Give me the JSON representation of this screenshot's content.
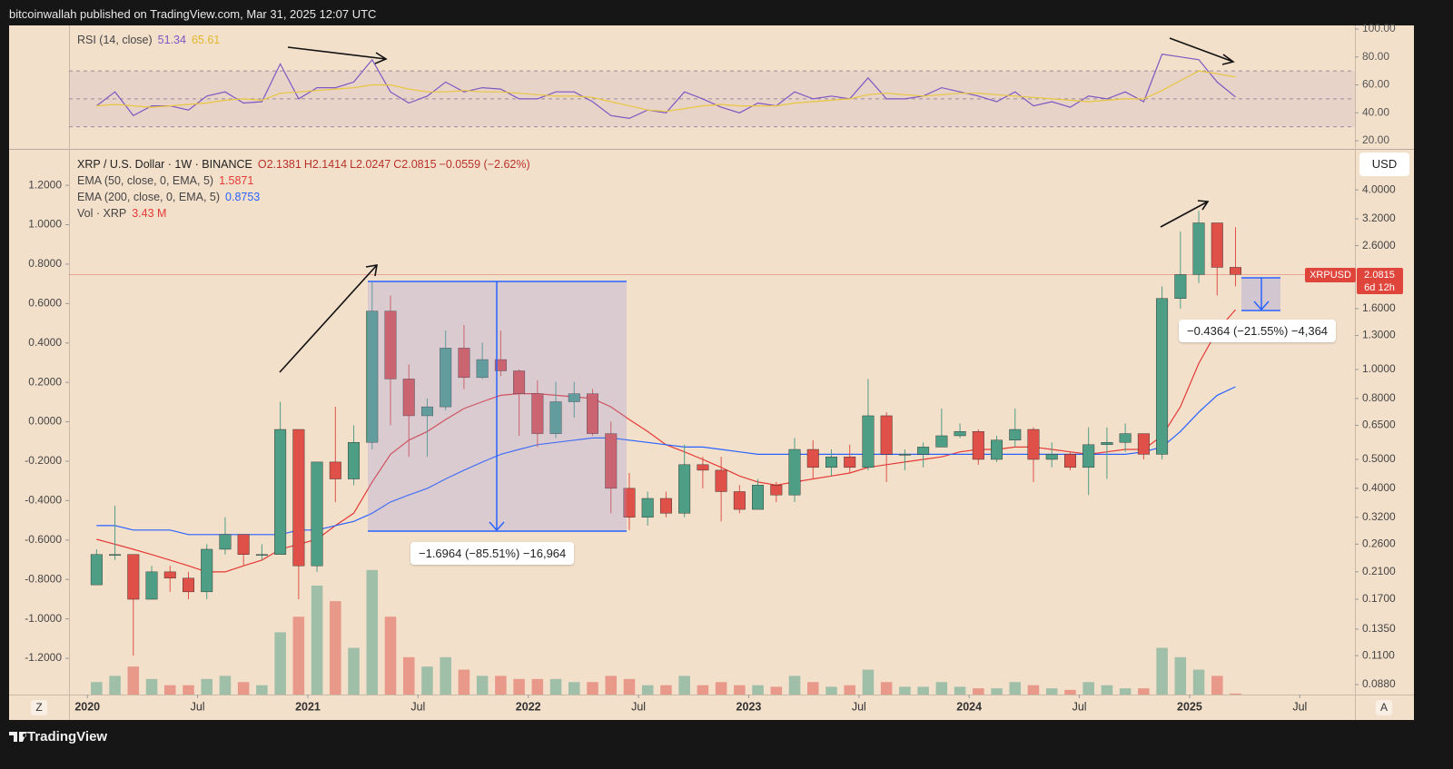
{
  "header": {
    "text": "bitcoinwallah published on TradingView.com, Mar 31, 2025 12:07 UTC"
  },
  "footer": {
    "brand": "TradingView",
    "left_button": "Z",
    "right_button": "A"
  },
  "chart_data": [
    {
      "type": "line",
      "title": "RSI (14, close)",
      "x": [
        "2020-01",
        "2020-02",
        "2020-03",
        "2020-04",
        "2020-05",
        "2020-06",
        "2020-07",
        "2020-08",
        "2020-09",
        "2020-10",
        "2020-11",
        "2020-12",
        "2021-01",
        "2021-02",
        "2021-03",
        "2021-04",
        "2021-05",
        "2021-06",
        "2021-07",
        "2021-08",
        "2021-09",
        "2021-10",
        "2021-11",
        "2021-12",
        "2022-01",
        "2022-02",
        "2022-03",
        "2022-04",
        "2022-05",
        "2022-06",
        "2022-07",
        "2022-08",
        "2022-09",
        "2022-10",
        "2022-11",
        "2022-12",
        "2023-01",
        "2023-02",
        "2023-03",
        "2023-04",
        "2023-05",
        "2023-06",
        "2023-07",
        "2023-08",
        "2023-09",
        "2023-10",
        "2023-11",
        "2023-12",
        "2024-01",
        "2024-02",
        "2024-03",
        "2024-04",
        "2024-05",
        "2024-06",
        "2024-07",
        "2024-08",
        "2024-09",
        "2024-10",
        "2024-11",
        "2024-12",
        "2025-01",
        "2025-02",
        "2025-03"
      ],
      "series": [
        {
          "color": "#7e57c2",
          "values": [
            45,
            55,
            38,
            45,
            45,
            42,
            52,
            55,
            47,
            48,
            75,
            50,
            58,
            58,
            62,
            78,
            55,
            47,
            52,
            62,
            55,
            58,
            57,
            50,
            50,
            55,
            55,
            48,
            38,
            36,
            42,
            40,
            55,
            50,
            44,
            40,
            47,
            45,
            55,
            50,
            52,
            50,
            65,
            50,
            50,
            52,
            58,
            55,
            52,
            48,
            55,
            45,
            48,
            44,
            52,
            50,
            55,
            48,
            82,
            80,
            78,
            62,
            51.34
          ]
        },
        {
          "color": "#e9c63f",
          "values": [
            45,
            46,
            45,
            44,
            45,
            46,
            47,
            49,
            50,
            49,
            54,
            55,
            56,
            57,
            58,
            60,
            60,
            57,
            55,
            55,
            56,
            55,
            55,
            54,
            53,
            52,
            52,
            51,
            48,
            45,
            42,
            41,
            43,
            45,
            46,
            45,
            45,
            45,
            47,
            48,
            49,
            50,
            53,
            54,
            53,
            52,
            53,
            54,
            54,
            53,
            52,
            51,
            50,
            49,
            48,
            49,
            50,
            50,
            56,
            63,
            70,
            68,
            65.61
          ]
        }
      ],
      "ylim": [
        14.8,
        102.6
      ],
      "yticks": [
        {
          "value": 100,
          "label": "100.00"
        },
        {
          "value": 80,
          "label": "80.00"
        },
        {
          "value": 60,
          "label": "60.00"
        },
        {
          "value": 40,
          "label": "40.00"
        },
        {
          "value": 20,
          "label": "20.00"
        }
      ],
      "band": [
        30,
        70
      ],
      "levels": [
        30,
        50,
        70
      ],
      "xlim": [
        "2019-12",
        "2025-10"
      ]
    },
    {
      "type": "candlestick",
      "title": "XRP / U.S. Dollar · 1W · BINANCE",
      "ohlc_legend": [
        "O2.1381",
        "H2.1414",
        "L2.0247",
        "C2.0815",
        "−0.0559 (−2.62%)"
      ],
      "x": [
        "2020-01",
        "2020-02",
        "2020-03",
        "2020-04",
        "2020-05",
        "2020-06",
        "2020-07",
        "2020-08",
        "2020-09",
        "2020-10",
        "2020-11",
        "2020-12",
        "2021-01",
        "2021-02",
        "2021-03",
        "2021-04",
        "2021-05",
        "2021-06",
        "2021-07",
        "2021-08",
        "2021-09",
        "2021-10",
        "2021-11",
        "2021-12",
        "2022-01",
        "2022-02",
        "2022-03",
        "2022-04",
        "2022-05",
        "2022-06",
        "2022-07",
        "2022-08",
        "2022-09",
        "2022-10",
        "2022-11",
        "2022-12",
        "2023-01",
        "2023-02",
        "2023-03",
        "2023-04",
        "2023-05",
        "2023-06",
        "2023-07",
        "2023-08",
        "2023-09",
        "2023-10",
        "2023-11",
        "2023-12",
        "2024-01",
        "2024-02",
        "2024-03",
        "2024-04",
        "2024-05",
        "2024-06",
        "2024-07",
        "2024-08",
        "2024-09",
        "2024-10",
        "2024-11",
        "2024-12",
        "2025-01",
        "2025-02",
        "2025-03"
      ],
      "open": [
        0.19,
        0.24,
        0.24,
        0.17,
        0.21,
        0.2,
        0.18,
        0.25,
        0.28,
        0.24,
        0.24,
        0.63,
        0.22,
        0.49,
        0.43,
        0.57,
        1.57,
        0.93,
        0.7,
        0.75,
        1.18,
        0.94,
        1.08,
        0.99,
        0.83,
        0.61,
        0.78,
        0.83,
        0.61,
        0.4,
        0.32,
        0.37,
        0.33,
        0.48,
        0.46,
        0.39,
        0.34,
        0.41,
        0.38,
        0.54,
        0.47,
        0.51,
        0.47,
        0.7,
        0.52,
        0.52,
        0.55,
        0.6,
        0.62,
        0.5,
        0.58,
        0.63,
        0.5,
        0.52,
        0.47,
        0.56,
        0.57,
        0.61,
        0.52,
        1.73,
        2.08,
        3.1,
        2.2
      ],
      "high": [
        0.25,
        0.35,
        0.24,
        0.22,
        0.22,
        0.21,
        0.26,
        0.32,
        0.28,
        0.26,
        0.78,
        0.63,
        0.49,
        0.75,
        0.65,
        1.96,
        1.77,
        1.04,
        0.8,
        1.35,
        1.41,
        1.23,
        1.35,
        1.0,
        0.92,
        0.91,
        0.91,
        0.86,
        0.67,
        0.45,
        0.39,
        0.39,
        0.56,
        0.51,
        0.51,
        0.41,
        0.43,
        0.42,
        0.59,
        0.58,
        0.54,
        0.56,
        0.93,
        0.72,
        0.54,
        0.57,
        0.74,
        0.66,
        0.63,
        0.6,
        0.74,
        0.64,
        0.57,
        0.53,
        0.64,
        0.64,
        0.66,
        0.61,
        1.9,
        2.9,
        3.4,
        3.1,
        3.0
      ],
      "low": [
        0.19,
        0.23,
        0.11,
        0.17,
        0.18,
        0.17,
        0.17,
        0.24,
        0.22,
        0.23,
        0.24,
        0.17,
        0.21,
        0.36,
        0.41,
        0.54,
        0.65,
        0.51,
        0.51,
        0.73,
        0.86,
        0.93,
        0.95,
        0.6,
        0.55,
        0.59,
        0.69,
        0.6,
        0.33,
        0.29,
        0.3,
        0.32,
        0.32,
        0.4,
        0.31,
        0.33,
        0.34,
        0.36,
        0.36,
        0.43,
        0.44,
        0.45,
        0.46,
        0.42,
        0.46,
        0.47,
        0.55,
        0.59,
        0.48,
        0.49,
        0.55,
        0.42,
        0.47,
        0.46,
        0.38,
        0.43,
        0.53,
        0.5,
        0.5,
        1.6,
        1.95,
        1.77,
        1.9
      ],
      "close": [
        0.24,
        0.24,
        0.17,
        0.21,
        0.2,
        0.18,
        0.25,
        0.28,
        0.24,
        0.24,
        0.63,
        0.22,
        0.49,
        0.43,
        0.57,
        1.57,
        0.93,
        0.7,
        0.75,
        1.18,
        0.94,
        1.08,
        0.99,
        0.83,
        0.61,
        0.78,
        0.83,
        0.61,
        0.4,
        0.32,
        0.37,
        0.33,
        0.48,
        0.46,
        0.39,
        0.34,
        0.41,
        0.38,
        0.54,
        0.47,
        0.51,
        0.47,
        0.7,
        0.52,
        0.52,
        0.55,
        0.6,
        0.62,
        0.5,
        0.58,
        0.63,
        0.5,
        0.52,
        0.47,
        0.56,
        0.57,
        0.61,
        0.52,
        1.73,
        2.08,
        3.1,
        2.2,
        2.0815
      ],
      "up_color": "#4e9e85",
      "down_color": "#df5148",
      "series": [
        {
          "name": "EMA (50, close, 0, EMA, 5)",
          "color": "#e53935",
          "values": [
            0.27,
            0.26,
            0.25,
            0.24,
            0.23,
            0.22,
            0.21,
            0.21,
            0.22,
            0.23,
            0.25,
            0.26,
            0.27,
            0.3,
            0.33,
            0.42,
            0.52,
            0.58,
            0.62,
            0.68,
            0.74,
            0.78,
            0.82,
            0.83,
            0.83,
            0.82,
            0.81,
            0.8,
            0.75,
            0.68,
            0.62,
            0.56,
            0.53,
            0.5,
            0.47,
            0.44,
            0.42,
            0.41,
            0.42,
            0.43,
            0.44,
            0.45,
            0.47,
            0.48,
            0.49,
            0.5,
            0.51,
            0.53,
            0.54,
            0.54,
            0.55,
            0.55,
            0.54,
            0.53,
            0.52,
            0.53,
            0.54,
            0.54,
            0.6,
            0.75,
            1.05,
            1.35,
            1.5871
          ]
        },
        {
          "name": "EMA (200, close, 0, EMA, 5)",
          "color": "#2962ff",
          "values": [
            0.3,
            0.3,
            0.29,
            0.29,
            0.29,
            0.28,
            0.28,
            0.28,
            0.28,
            0.28,
            0.28,
            0.29,
            0.29,
            0.3,
            0.31,
            0.33,
            0.36,
            0.38,
            0.4,
            0.43,
            0.46,
            0.49,
            0.52,
            0.54,
            0.56,
            0.57,
            0.58,
            0.59,
            0.59,
            0.58,
            0.57,
            0.56,
            0.55,
            0.55,
            0.54,
            0.53,
            0.52,
            0.52,
            0.52,
            0.52,
            0.52,
            0.52,
            0.52,
            0.52,
            0.52,
            0.52,
            0.52,
            0.52,
            0.52,
            0.52,
            0.52,
            0.52,
            0.52,
            0.52,
            0.52,
            0.52,
            0.52,
            0.53,
            0.55,
            0.62,
            0.72,
            0.82,
            0.8753
          ]
        }
      ],
      "volume": {
        "name": "Vol · XRP",
        "legend_value": "3.43 M",
        "values": [
          40,
          60,
          90,
          50,
          30,
          30,
          50,
          60,
          40,
          30,
          200,
          250,
          350,
          300,
          150,
          400,
          250,
          120,
          90,
          120,
          80,
          60,
          60,
          50,
          50,
          50,
          40,
          40,
          60,
          50,
          30,
          30,
          60,
          30,
          40,
          30,
          30,
          25,
          60,
          40,
          25,
          30,
          80,
          40,
          25,
          25,
          40,
          25,
          20,
          20,
          40,
          30,
          20,
          15,
          40,
          30,
          20,
          20,
          150,
          120,
          80,
          60,
          3.43
        ],
        "vlim": [
          0,
          700
        ]
      },
      "log": true,
      "ylim": [
        0.0815,
        5.26
      ],
      "yticks": [
        {
          "value": 4,
          "label": "4.0000"
        },
        {
          "value": 3.2,
          "label": "3.2000"
        },
        {
          "value": 2.6,
          "label": "2.6000"
        },
        {
          "value": 1.6,
          "label": "1.6000"
        },
        {
          "value": 1.3,
          "label": "1.3000"
        },
        {
          "value": 1,
          "label": "1.0000"
        },
        {
          "value": 0.8,
          "label": "0.8000"
        },
        {
          "value": 0.65,
          "label": "0.6500"
        },
        {
          "value": 0.5,
          "label": "0.5000"
        },
        {
          "value": 0.4,
          "label": "0.4000"
        },
        {
          "value": 0.32,
          "label": "0.3200"
        },
        {
          "value": 0.26,
          "label": "0.2600"
        },
        {
          "value": 0.21,
          "label": "0.2100"
        },
        {
          "value": 0.17,
          "label": "0.1700"
        },
        {
          "value": 0.135,
          "label": "0.1350"
        },
        {
          "value": 0.11,
          "label": "0.1100"
        },
        {
          "value": 0.088,
          "label": "0.0880"
        }
      ],
      "y2lim": [
        -1.384,
        1.357
      ],
      "y2ticks": [
        {
          "value": 1.2,
          "label": "1.2000"
        },
        {
          "value": 1,
          "label": "1.0000"
        },
        {
          "value": 0.8,
          "label": "0.8000"
        },
        {
          "value": 0.6,
          "label": "0.6000"
        },
        {
          "value": 0.4,
          "label": "0.4000"
        },
        {
          "value": 0.2,
          "label": "0.2000"
        },
        {
          "value": 0,
          "label": "0.0000"
        },
        {
          "value": -0.2,
          "label": "-0.2000"
        },
        {
          "value": -0.4,
          "label": "-0.4000"
        },
        {
          "value": -0.6,
          "label": "-0.6000"
        },
        {
          "value": -0.8,
          "label": "-0.8000"
        },
        {
          "value": -1,
          "label": "-1.0000"
        },
        {
          "value": -1.2,
          "label": "-1.2000"
        }
      ],
      "xlim": [
        "2019-12",
        "2025-10"
      ],
      "xticks": [
        {
          "value": "2020-01",
          "label": "2020"
        },
        {
          "value": "2020-07",
          "label": "Jul"
        },
        {
          "value": "2021-01",
          "label": "2021"
        },
        {
          "value": "2021-07",
          "label": "Jul"
        },
        {
          "value": "2022-01",
          "label": "2022"
        },
        {
          "value": "2022-07",
          "label": "Jul"
        },
        {
          "value": "2023-01",
          "label": "2023"
        },
        {
          "value": "2023-07",
          "label": "Jul"
        },
        {
          "value": "2024-01",
          "label": "2024"
        },
        {
          "value": "2024-07",
          "label": "Jul"
        },
        {
          "value": "2025-01",
          "label": "2025"
        },
        {
          "value": "2025-07",
          "label": "Jul"
        }
      ],
      "currency": "USD",
      "symbol_label": "XRPUSD",
      "countdown": "6d 12h",
      "measures": [
        {
          "label": "−1.6964 (−85.51%) −16,964"
        },
        {
          "label": "−0.4364 (−21.55%) −4,364"
        }
      ]
    }
  ]
}
